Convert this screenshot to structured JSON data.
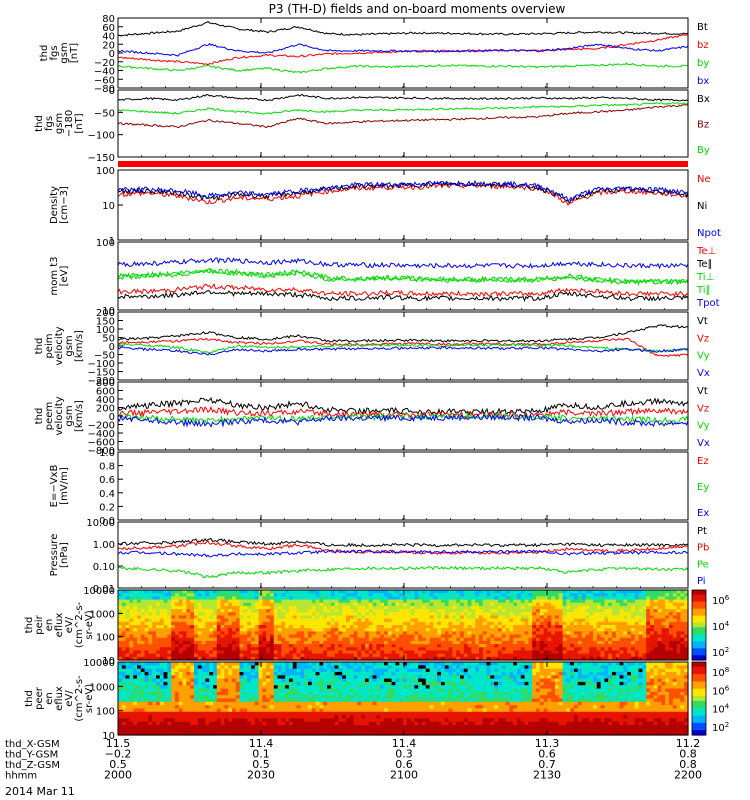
{
  "title": "P3 (TH-D) fields and on-board moments overview",
  "colors": {
    "black": "#000000",
    "red": "#ff0000",
    "green": "#00dd00",
    "blue": "#0000ff",
    "darkred": "#8b0000"
  },
  "chart_data": [
    {
      "type": "line",
      "panel": "fgs_gsm",
      "ylabel": [
        "thd",
        "fgs",
        "gsm",
        "[nT]"
      ],
      "yticks": [
        "80",
        "60",
        "40",
        "20",
        "0",
        "−20",
        "−40",
        "−60",
        "−80"
      ],
      "ylim": [
        -80,
        80
      ],
      "series": [
        {
          "name": "Bt",
          "color": "#000000",
          "values": [
            40,
            45,
            50,
            70,
            55,
            48,
            60,
            44,
            42,
            44,
            46,
            45,
            44,
            43,
            44,
            46,
            48,
            46,
            45,
            44
          ]
        },
        {
          "name": "bz",
          "color": "#ff0000",
          "values": [
            -10,
            -15,
            -20,
            -25,
            -10,
            -5,
            -8,
            -2,
            0,
            2,
            4,
            5,
            6,
            6,
            5,
            8,
            10,
            20,
            30,
            42
          ]
        },
        {
          "name": "by",
          "color": "#00dd00",
          "values": [
            -30,
            -35,
            -40,
            -30,
            -40,
            -35,
            -45,
            -35,
            -30,
            -32,
            -30,
            -28,
            -30,
            -30,
            -32,
            -30,
            -28,
            -25,
            -30,
            -30
          ]
        },
        {
          "name": "bx",
          "color": "#0000ff",
          "values": [
            5,
            0,
            -5,
            20,
            5,
            0,
            20,
            5,
            5,
            5,
            4,
            4,
            5,
            6,
            5,
            10,
            20,
            10,
            5,
            15
          ]
        }
      ]
    },
    {
      "type": "line",
      "panel": "fgs_gsm_minus_180",
      "ylabel": [
        "thd",
        "fgs",
        "gsm",
        "−180",
        "[nT]"
      ],
      "yticks": [
        "0",
        "−50",
        "−100",
        "−150"
      ],
      "ylim": [
        -180,
        20
      ],
      "series": [
        {
          "name": "Bx",
          "color": "#000000",
          "values": [
            -10,
            -5,
            -10,
            5,
            -5,
            -10,
            5,
            -5,
            -2,
            -3,
            -4,
            -5,
            -6,
            -5,
            -4,
            -5,
            -3,
            -5,
            -10,
            -10
          ]
        },
        {
          "name": "Bz",
          "color": "#8b0000",
          "values": [
            -80,
            -85,
            -90,
            -70,
            -80,
            -90,
            -65,
            -80,
            -75,
            -72,
            -70,
            -68,
            -65,
            -62,
            -60,
            -50,
            -45,
            -40,
            -30,
            -25
          ]
        },
        {
          "name": "By",
          "color": "#00dd00",
          "values": [
            -40,
            -45,
            -50,
            -35,
            -45,
            -50,
            -40,
            -45,
            -40,
            -40,
            -38,
            -36,
            -35,
            -34,
            -30,
            -30,
            -25,
            -25,
            -20,
            -20
          ]
        }
      ]
    },
    {
      "type": "line",
      "panel": "density",
      "ylabel": [
        "Density",
        "[cm−3]"
      ],
      "yticks": [
        "100",
        "10",
        "1"
      ],
      "ylim": [
        1,
        100
      ],
      "yscale": "log",
      "series": [
        {
          "name": "Ne",
          "color": "#ff0000",
          "values": [
            20,
            22,
            18,
            12,
            16,
            15,
            18,
            25,
            30,
            32,
            33,
            35,
            35,
            34,
            30,
            10,
            22,
            25,
            22,
            18
          ]
        },
        {
          "name": "Ni",
          "color": "#000000",
          "values": [
            25,
            25,
            22,
            15,
            20,
            18,
            22,
            28,
            35,
            35,
            38,
            40,
            40,
            38,
            32,
            12,
            25,
            28,
            25,
            20
          ]
        },
        {
          "name": "Npot",
          "color": "#0000ff",
          "values": [
            28,
            28,
            25,
            18,
            22,
            20,
            25,
            30,
            38,
            38,
            40,
            42,
            42,
            40,
            35,
            14,
            28,
            30,
            28,
            22
          ]
        }
      ]
    },
    {
      "type": "line",
      "panel": "moments",
      "ylabel": [
        "mom t3",
        "[eV]"
      ],
      "yticks": [
        "100",
        "10"
      ],
      "ylim": [
        10,
        1000
      ],
      "yscale": "log",
      "series": [
        {
          "name": "Te⊥",
          "color": "#ff0000",
          "values": [
            35,
            35,
            40,
            50,
            45,
            40,
            40,
            30,
            30,
            32,
            30,
            30,
            30,
            30,
            30,
            40,
            35,
            30,
            30,
            30
          ]
        },
        {
          "name": "Te∥",
          "color": "#000000",
          "values": [
            25,
            25,
            28,
            35,
            30,
            30,
            28,
            22,
            22,
            24,
            22,
            22,
            22,
            22,
            22,
            30,
            26,
            22,
            22,
            22
          ]
        },
        {
          "name": "Ti⊥",
          "color": "#00dd00",
          "values": [
            100,
            110,
            120,
            150,
            130,
            110,
            130,
            90,
            85,
            90,
            85,
            80,
            80,
            80,
            80,
            100,
            80,
            70,
            70,
            70
          ]
        },
        {
          "name": "Ti∥",
          "color": "#00dd00",
          "values": [
            90,
            100,
            110,
            140,
            120,
            100,
            120,
            80,
            80,
            85,
            80,
            75,
            75,
            75,
            75,
            90,
            75,
            65,
            65,
            65
          ]
        },
        {
          "name": "Tpot",
          "color": "#0000ff",
          "values": [
            220,
            230,
            250,
            300,
            280,
            250,
            280,
            220,
            210,
            210,
            200,
            200,
            200,
            200,
            200,
            240,
            220,
            200,
            200,
            200
          ]
        }
      ]
    },
    {
      "type": "line",
      "panel": "peim_velocity",
      "ylabel": [
        "thd",
        "peim",
        "velocity",
        "gsm",
        "[km/s]"
      ],
      "yticks": [
        "200",
        "150",
        "100",
        "50",
        "0",
        "−50",
        "−100",
        "−150",
        "−200"
      ],
      "ylim": [
        -200,
        200
      ],
      "series": [
        {
          "name": "Vt",
          "color": "#000000",
          "values": [
            40,
            45,
            60,
            80,
            50,
            40,
            60,
            30,
            30,
            32,
            35,
            30,
            30,
            30,
            30,
            40,
            50,
            80,
            120,
            110
          ]
        },
        {
          "name": "Vz",
          "color": "#ff0000",
          "values": [
            20,
            25,
            30,
            40,
            20,
            15,
            30,
            10,
            10,
            12,
            15,
            10,
            12,
            10,
            10,
            20,
            30,
            40,
            -60,
            -50
          ]
        },
        {
          "name": "Vy",
          "color": "#00dd00",
          "values": [
            10,
            5,
            -10,
            -40,
            0,
            -10,
            -5,
            0,
            5,
            5,
            4,
            3,
            5,
            6,
            5,
            0,
            -10,
            -20,
            -30,
            -20
          ]
        },
        {
          "name": "Vx",
          "color": "#0000ff",
          "values": [
            -10,
            -20,
            -30,
            -50,
            -20,
            -30,
            -20,
            -20,
            -15,
            -12,
            -14,
            -10,
            -12,
            -14,
            -10,
            -20,
            -30,
            -20,
            -30,
            -20
          ]
        }
      ]
    },
    {
      "type": "line",
      "panel": "peem_velocity",
      "ylabel": [
        "thd",
        "peem",
        "velocity",
        "gsm",
        "[km/s]"
      ],
      "yticks": [
        "800",
        "600",
        "400",
        "200",
        "0",
        "−200",
        "−400",
        "−600",
        "−800"
      ],
      "ylim": [
        -800,
        800
      ],
      "series": [
        {
          "name": "Vt",
          "color": "#000000",
          "values": [
            200,
            250,
            300,
            400,
            250,
            200,
            300,
            150,
            120,
            120,
            110,
            100,
            100,
            100,
            110,
            250,
            200,
            300,
            350,
            300
          ]
        },
        {
          "name": "Vz",
          "color": "#ff0000",
          "values": [
            50,
            80,
            100,
            150,
            80,
            60,
            100,
            50,
            40,
            40,
            35,
            30,
            30,
            30,
            40,
            80,
            60,
            100,
            120,
            100
          ]
        },
        {
          "name": "Vy",
          "color": "#00dd00",
          "values": [
            0,
            -50,
            -80,
            -120,
            -60,
            -50,
            -70,
            -30,
            -20,
            -20,
            -15,
            -10,
            -10,
            -10,
            -20,
            -60,
            -50,
            -80,
            -100,
            -80
          ]
        },
        {
          "name": "Vx",
          "color": "#0000ff",
          "values": [
            -50,
            -100,
            -150,
            -200,
            -120,
            -100,
            -140,
            -60,
            -50,
            -50,
            -40,
            -30,
            -30,
            -30,
            -50,
            -120,
            -100,
            -150,
            -180,
            -150
          ]
        }
      ]
    },
    {
      "type": "line",
      "panel": "e_field",
      "ylabel": [
        "E=−VxB",
        "[mV/m]"
      ],
      "yticks": [
        "1.0",
        "0.8",
        "0.6",
        "0.4",
        "0.2",
        "0.0"
      ],
      "ylim": [
        0,
        1
      ],
      "series": [
        {
          "name": "Ez",
          "color": "#ff0000",
          "values": []
        },
        {
          "name": "Ey",
          "color": "#00dd00",
          "values": []
        },
        {
          "name": "Ex",
          "color": "#0000ff",
          "values": []
        }
      ]
    },
    {
      "type": "line",
      "panel": "pressure",
      "ylabel": [
        "Pressure",
        "[nPa]"
      ],
      "yticks": [
        "10.00",
        "1.00",
        "0.10",
        "0.01"
      ],
      "ylim": [
        0.01,
        10
      ],
      "yscale": "log",
      "series": [
        {
          "name": "Pt",
          "color": "#000000",
          "values": [
            1.0,
            1.1,
            1.2,
            1.6,
            1.2,
            1.0,
            1.3,
            0.9,
            0.9,
            0.9,
            0.9,
            0.9,
            0.9,
            0.9,
            0.9,
            1.0,
            0.9,
            0.9,
            0.9,
            0.9
          ]
        },
        {
          "name": "Pb",
          "color": "#ff0000",
          "values": [
            0.6,
            0.7,
            0.8,
            1.2,
            0.8,
            0.6,
            0.9,
            0.5,
            0.45,
            0.45,
            0.4,
            0.4,
            0.4,
            0.4,
            0.4,
            0.6,
            0.5,
            0.5,
            0.6,
            0.8
          ]
        },
        {
          "name": "Pe",
          "color": "#00dd00",
          "values": [
            0.08,
            0.07,
            0.06,
            0.03,
            0.05,
            0.05,
            0.06,
            0.07,
            0.08,
            0.08,
            0.08,
            0.08,
            0.08,
            0.08,
            0.08,
            0.05,
            0.07,
            0.08,
            0.07,
            0.07
          ]
        },
        {
          "name": "Pi",
          "color": "#0000ff",
          "values": [
            0.4,
            0.4,
            0.35,
            0.3,
            0.35,
            0.35,
            0.4,
            0.45,
            0.45,
            0.45,
            0.45,
            0.45,
            0.45,
            0.45,
            0.45,
            0.35,
            0.4,
            0.4,
            0.4,
            0.4
          ]
        }
      ]
    },
    {
      "type": "heatmap",
      "panel": "peir_eflux",
      "ylabel": [
        "thd",
        "peir",
        "en",
        "eflux",
        "eV/",
        "(cm^2-s-",
        "sr-eV)"
      ],
      "yticks": [
        "10000",
        "1000",
        "100",
        "10"
      ],
      "ylim": [
        10,
        20000
      ],
      "yscale": "log",
      "colorbar_ticks": [
        "10^6",
        "10^4",
        "10^2"
      ]
    },
    {
      "type": "heatmap",
      "panel": "peer_eflux",
      "ylabel": [
        "thd",
        "peer",
        "en",
        "eflux",
        "eV/",
        "(cm^2-s-",
        "sr-eV)"
      ],
      "yticks": [
        "10000",
        "1000",
        "100",
        "10"
      ],
      "ylim": [
        7,
        30000
      ],
      "yscale": "log",
      "colorbar_ticks": [
        "10^8",
        "10^6",
        "10^4",
        "10^2"
      ]
    }
  ],
  "xaxis": {
    "rows": [
      {
        "label": "thd_X-GSM",
        "values": [
          "11.5",
          "11.4",
          "11.4",
          "11.3",
          "11.2"
        ]
      },
      {
        "label": "thd_Y-GSM",
        "values": [
          "−0.2",
          "0.1",
          "0.3",
          "0.6",
          "0.8"
        ]
      },
      {
        "label": "thd_Z-GSM",
        "values": [
          "0.5",
          "0.5",
          "0.6",
          "0.7",
          "0.8"
        ]
      },
      {
        "label": "hhmm",
        "values": [
          "2000",
          "2030",
          "2100",
          "2130",
          "2200"
        ]
      }
    ],
    "date": "2014 Mar 11"
  }
}
